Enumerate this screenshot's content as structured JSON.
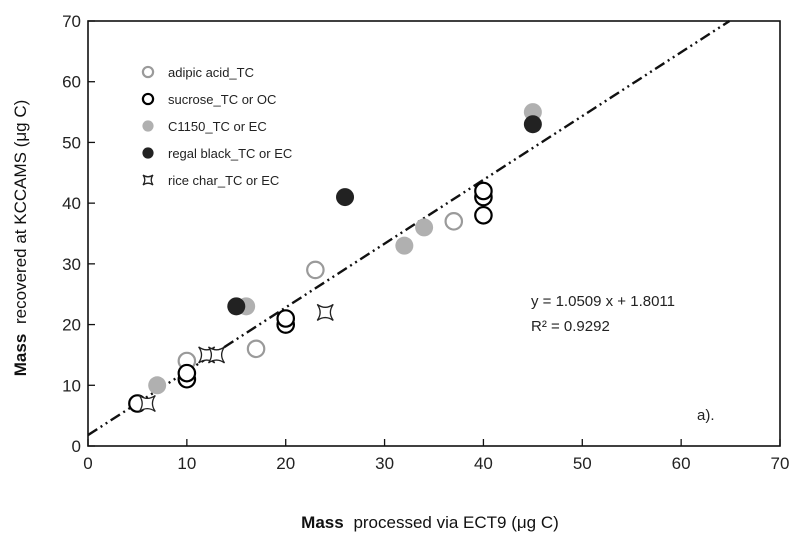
{
  "chart_data": {
    "type": "scatter",
    "title": "",
    "xlabel_bold": "Mass",
    "xlabel_rest": "processed via ECT9 (μg C)",
    "ylabel_bold": "Mass",
    "ylabel_rest": "recovered at KCCAMS (μg C)",
    "xlim": [
      0,
      70
    ],
    "ylim": [
      0,
      70
    ],
    "xticks": [
      0,
      10,
      20,
      30,
      40,
      50,
      60,
      70
    ],
    "yticks": [
      0,
      10,
      20,
      30,
      40,
      50,
      60,
      70
    ],
    "legend_position": "top-left",
    "panel_label": "a).",
    "fit": {
      "slope": 1.0509,
      "intercept": 1.8011,
      "equation": "y = 1.0509 x + 1.8011",
      "r2": "R² = 0.9292"
    },
    "series": [
      {
        "name": "adipic acid_TC",
        "marker": "open-circle-gray",
        "points": [
          [
            10,
            14
          ],
          [
            17,
            16
          ],
          [
            23,
            29
          ],
          [
            37,
            37
          ]
        ]
      },
      {
        "name": "sucrose_TC or OC",
        "marker": "open-circle-black",
        "points": [
          [
            5,
            7
          ],
          [
            10,
            11
          ],
          [
            10,
            12
          ],
          [
            20,
            20
          ],
          [
            20,
            21
          ],
          [
            40,
            38
          ],
          [
            40,
            41
          ],
          [
            40,
            42
          ]
        ]
      },
      {
        "name": "C1150_TC or EC",
        "marker": "filled-circle-gray",
        "points": [
          [
            7,
            10
          ],
          [
            16,
            23
          ],
          [
            32,
            33
          ],
          [
            34,
            36
          ],
          [
            45,
            55
          ]
        ]
      },
      {
        "name": "regal black_TC or EC",
        "marker": "filled-circle-black",
        "points": [
          [
            15,
            23
          ],
          [
            26,
            41
          ],
          [
            45,
            53
          ]
        ]
      },
      {
        "name": "rice char_TC or EC",
        "marker": "star",
        "points": [
          [
            6,
            7
          ],
          [
            12,
            15
          ],
          [
            13,
            15
          ],
          [
            24,
            22
          ]
        ]
      }
    ]
  }
}
